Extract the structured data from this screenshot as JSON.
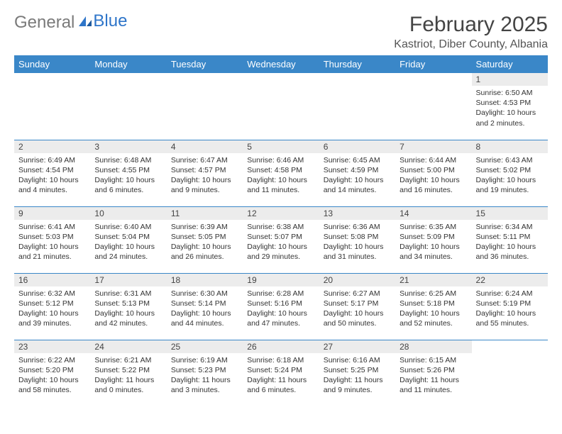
{
  "logo": {
    "text1": "General",
    "text2": "Blue"
  },
  "title": "February 2025",
  "location": "Kastriot, Diber County, Albania",
  "colors": {
    "header_bg": "#3a87c8",
    "header_text": "#ffffff",
    "daynum_bg": "#ececec",
    "border": "#3a87c8",
    "logo_gray": "#7a7a7a",
    "logo_blue": "#2e75c9"
  },
  "dayNames": [
    "Sunday",
    "Monday",
    "Tuesday",
    "Wednesday",
    "Thursday",
    "Friday",
    "Saturday"
  ],
  "weeks": [
    [
      {
        "n": "",
        "sr": "",
        "ss": "",
        "dl": ""
      },
      {
        "n": "",
        "sr": "",
        "ss": "",
        "dl": ""
      },
      {
        "n": "",
        "sr": "",
        "ss": "",
        "dl": ""
      },
      {
        "n": "",
        "sr": "",
        "ss": "",
        "dl": ""
      },
      {
        "n": "",
        "sr": "",
        "ss": "",
        "dl": ""
      },
      {
        "n": "",
        "sr": "",
        "ss": "",
        "dl": ""
      },
      {
        "n": "1",
        "sr": "Sunrise: 6:50 AM",
        "ss": "Sunset: 4:53 PM",
        "dl": "Daylight: 10 hours and 2 minutes."
      }
    ],
    [
      {
        "n": "2",
        "sr": "Sunrise: 6:49 AM",
        "ss": "Sunset: 4:54 PM",
        "dl": "Daylight: 10 hours and 4 minutes."
      },
      {
        "n": "3",
        "sr": "Sunrise: 6:48 AM",
        "ss": "Sunset: 4:55 PM",
        "dl": "Daylight: 10 hours and 6 minutes."
      },
      {
        "n": "4",
        "sr": "Sunrise: 6:47 AM",
        "ss": "Sunset: 4:57 PM",
        "dl": "Daylight: 10 hours and 9 minutes."
      },
      {
        "n": "5",
        "sr": "Sunrise: 6:46 AM",
        "ss": "Sunset: 4:58 PM",
        "dl": "Daylight: 10 hours and 11 minutes."
      },
      {
        "n": "6",
        "sr": "Sunrise: 6:45 AM",
        "ss": "Sunset: 4:59 PM",
        "dl": "Daylight: 10 hours and 14 minutes."
      },
      {
        "n": "7",
        "sr": "Sunrise: 6:44 AM",
        "ss": "Sunset: 5:00 PM",
        "dl": "Daylight: 10 hours and 16 minutes."
      },
      {
        "n": "8",
        "sr": "Sunrise: 6:43 AM",
        "ss": "Sunset: 5:02 PM",
        "dl": "Daylight: 10 hours and 19 minutes."
      }
    ],
    [
      {
        "n": "9",
        "sr": "Sunrise: 6:41 AM",
        "ss": "Sunset: 5:03 PM",
        "dl": "Daylight: 10 hours and 21 minutes."
      },
      {
        "n": "10",
        "sr": "Sunrise: 6:40 AM",
        "ss": "Sunset: 5:04 PM",
        "dl": "Daylight: 10 hours and 24 minutes."
      },
      {
        "n": "11",
        "sr": "Sunrise: 6:39 AM",
        "ss": "Sunset: 5:05 PM",
        "dl": "Daylight: 10 hours and 26 minutes."
      },
      {
        "n": "12",
        "sr": "Sunrise: 6:38 AM",
        "ss": "Sunset: 5:07 PM",
        "dl": "Daylight: 10 hours and 29 minutes."
      },
      {
        "n": "13",
        "sr": "Sunrise: 6:36 AM",
        "ss": "Sunset: 5:08 PM",
        "dl": "Daylight: 10 hours and 31 minutes."
      },
      {
        "n": "14",
        "sr": "Sunrise: 6:35 AM",
        "ss": "Sunset: 5:09 PM",
        "dl": "Daylight: 10 hours and 34 minutes."
      },
      {
        "n": "15",
        "sr": "Sunrise: 6:34 AM",
        "ss": "Sunset: 5:11 PM",
        "dl": "Daylight: 10 hours and 36 minutes."
      }
    ],
    [
      {
        "n": "16",
        "sr": "Sunrise: 6:32 AM",
        "ss": "Sunset: 5:12 PM",
        "dl": "Daylight: 10 hours and 39 minutes."
      },
      {
        "n": "17",
        "sr": "Sunrise: 6:31 AM",
        "ss": "Sunset: 5:13 PM",
        "dl": "Daylight: 10 hours and 42 minutes."
      },
      {
        "n": "18",
        "sr": "Sunrise: 6:30 AM",
        "ss": "Sunset: 5:14 PM",
        "dl": "Daylight: 10 hours and 44 minutes."
      },
      {
        "n": "19",
        "sr": "Sunrise: 6:28 AM",
        "ss": "Sunset: 5:16 PM",
        "dl": "Daylight: 10 hours and 47 minutes."
      },
      {
        "n": "20",
        "sr": "Sunrise: 6:27 AM",
        "ss": "Sunset: 5:17 PM",
        "dl": "Daylight: 10 hours and 50 minutes."
      },
      {
        "n": "21",
        "sr": "Sunrise: 6:25 AM",
        "ss": "Sunset: 5:18 PM",
        "dl": "Daylight: 10 hours and 52 minutes."
      },
      {
        "n": "22",
        "sr": "Sunrise: 6:24 AM",
        "ss": "Sunset: 5:19 PM",
        "dl": "Daylight: 10 hours and 55 minutes."
      }
    ],
    [
      {
        "n": "23",
        "sr": "Sunrise: 6:22 AM",
        "ss": "Sunset: 5:20 PM",
        "dl": "Daylight: 10 hours and 58 minutes."
      },
      {
        "n": "24",
        "sr": "Sunrise: 6:21 AM",
        "ss": "Sunset: 5:22 PM",
        "dl": "Daylight: 11 hours and 0 minutes."
      },
      {
        "n": "25",
        "sr": "Sunrise: 6:19 AM",
        "ss": "Sunset: 5:23 PM",
        "dl": "Daylight: 11 hours and 3 minutes."
      },
      {
        "n": "26",
        "sr": "Sunrise: 6:18 AM",
        "ss": "Sunset: 5:24 PM",
        "dl": "Daylight: 11 hours and 6 minutes."
      },
      {
        "n": "27",
        "sr": "Sunrise: 6:16 AM",
        "ss": "Sunset: 5:25 PM",
        "dl": "Daylight: 11 hours and 9 minutes."
      },
      {
        "n": "28",
        "sr": "Sunrise: 6:15 AM",
        "ss": "Sunset: 5:26 PM",
        "dl": "Daylight: 11 hours and 11 minutes."
      },
      {
        "n": "",
        "sr": "",
        "ss": "",
        "dl": ""
      }
    ]
  ]
}
